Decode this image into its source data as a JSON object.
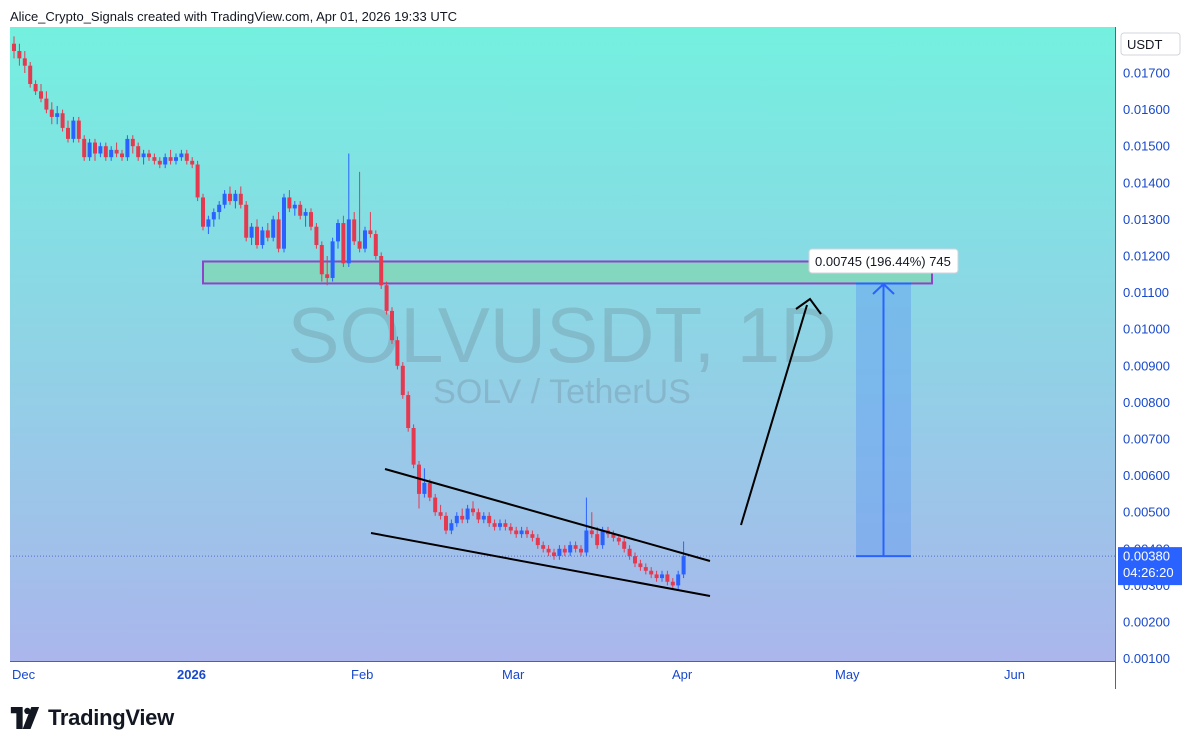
{
  "header": {
    "attribution": "Alice_Crypto_Signals created with TradingView.com, Apr 01, 2026 19:33 UTC"
  },
  "watermark": {
    "symbol": "SOLVUSDT, 1D",
    "pair": "SOLV / TetherUS"
  },
  "price_axis": {
    "currency": "USDT",
    "ticks": [
      "0.01700",
      "0.01600",
      "0.01500",
      "0.01400",
      "0.01300",
      "0.01200",
      "0.01100",
      "0.01000",
      "0.00900",
      "0.00800",
      "0.00700",
      "0.00600",
      "0.00500",
      "0.00400",
      "0.00300",
      "0.00200",
      "0.00100"
    ],
    "current_price": "0.00380",
    "countdown": "04:26:20"
  },
  "time_axis": {
    "labels": [
      {
        "text": "Dec",
        "bold": false
      },
      {
        "text": "2026",
        "bold": true
      },
      {
        "text": "Feb",
        "bold": false
      },
      {
        "text": "Mar",
        "bold": false
      },
      {
        "text": "Apr",
        "bold": false
      },
      {
        "text": "May",
        "bold": false
      },
      {
        "text": "Jun",
        "bold": false
      }
    ]
  },
  "measure_label": "0.00745 (196.44%) 745",
  "colors": {
    "up": "#2962ff",
    "down": "#e53950",
    "background_top": "#74f0df",
    "background_bottom": "#aab6ec",
    "resistance_fill": "#84d6b9",
    "resistance_border": "#8e44c9",
    "projection_fill": "#5f9cf2",
    "axis": "#2962ff"
  },
  "footer": {
    "brand": "TradingView"
  },
  "chart_data": {
    "type": "candlestick",
    "symbol": "SOLVUSDT",
    "interval": "1D",
    "ylim": [
      0.0009,
      0.0184
    ],
    "candles": [
      [
        0.0178,
        0.018,
        0.0174,
        0.0176
      ],
      [
        0.0176,
        0.0178,
        0.0172,
        0.0174
      ],
      [
        0.0174,
        0.0176,
        0.017,
        0.0172
      ],
      [
        0.0172,
        0.0173,
        0.0166,
        0.0167
      ],
      [
        0.0167,
        0.0168,
        0.0164,
        0.0165
      ],
      [
        0.0165,
        0.0167,
        0.0162,
        0.0163
      ],
      [
        0.0163,
        0.0165,
        0.0159,
        0.016
      ],
      [
        0.016,
        0.0162,
        0.0156,
        0.0158
      ],
      [
        0.0158,
        0.0161,
        0.0156,
        0.0159
      ],
      [
        0.0159,
        0.016,
        0.0154,
        0.0155
      ],
      [
        0.0155,
        0.0157,
        0.0151,
        0.0152
      ],
      [
        0.0152,
        0.0158,
        0.0151,
        0.0157
      ],
      [
        0.0157,
        0.0158,
        0.0151,
        0.0152
      ],
      [
        0.0152,
        0.0153,
        0.0146,
        0.0147
      ],
      [
        0.0147,
        0.0152,
        0.0146,
        0.0151
      ],
      [
        0.0151,
        0.0152,
        0.0146,
        0.0148
      ],
      [
        0.0148,
        0.0151,
        0.0147,
        0.015
      ],
      [
        0.015,
        0.0151,
        0.0146,
        0.0147
      ],
      [
        0.0147,
        0.015,
        0.0146,
        0.0149
      ],
      [
        0.0149,
        0.0151,
        0.0147,
        0.0148
      ],
      [
        0.0148,
        0.0149,
        0.0146,
        0.0147
      ],
      [
        0.0147,
        0.0153,
        0.0146,
        0.0152
      ],
      [
        0.0152,
        0.0153,
        0.0148,
        0.015
      ],
      [
        0.015,
        0.0151,
        0.0146,
        0.0147
      ],
      [
        0.0147,
        0.0149,
        0.0145,
        0.0148
      ],
      [
        0.0148,
        0.0149,
        0.0146,
        0.0147
      ],
      [
        0.0147,
        0.0148,
        0.0145,
        0.0146
      ],
      [
        0.0146,
        0.0147,
        0.0144,
        0.0145
      ],
      [
        0.0145,
        0.0148,
        0.0144,
        0.0147
      ],
      [
        0.0147,
        0.0149,
        0.0145,
        0.0146
      ],
      [
        0.0146,
        0.0148,
        0.0145,
        0.0147
      ],
      [
        0.0147,
        0.0149,
        0.0146,
        0.0148
      ],
      [
        0.0148,
        0.0149,
        0.0145,
        0.0146
      ],
      [
        0.0146,
        0.0147,
        0.0144,
        0.0145
      ],
      [
        0.0145,
        0.0146,
        0.0135,
        0.0136
      ],
      [
        0.0136,
        0.0137,
        0.0127,
        0.0128
      ],
      [
        0.0128,
        0.0131,
        0.0126,
        0.013
      ],
      [
        0.013,
        0.0133,
        0.0128,
        0.0132
      ],
      [
        0.0132,
        0.0135,
        0.013,
        0.0134
      ],
      [
        0.0134,
        0.0138,
        0.0133,
        0.0137
      ],
      [
        0.0137,
        0.0139,
        0.0134,
        0.0135
      ],
      [
        0.0135,
        0.0138,
        0.0133,
        0.0137
      ],
      [
        0.0137,
        0.0139,
        0.0133,
        0.0134
      ],
      [
        0.0134,
        0.0135,
        0.0124,
        0.0125
      ],
      [
        0.0125,
        0.0129,
        0.0123,
        0.0128
      ],
      [
        0.0128,
        0.013,
        0.0122,
        0.0123
      ],
      [
        0.0123,
        0.0128,
        0.0122,
        0.0127
      ],
      [
        0.0127,
        0.0129,
        0.0124,
        0.0125
      ],
      [
        0.0125,
        0.0131,
        0.0124,
        0.013
      ],
      [
        0.013,
        0.0132,
        0.0121,
        0.0122
      ],
      [
        0.0122,
        0.0137,
        0.0121,
        0.0136
      ],
      [
        0.0136,
        0.0138,
        0.0132,
        0.0133
      ],
      [
        0.0133,
        0.0135,
        0.0131,
        0.0134
      ],
      [
        0.0134,
        0.0135,
        0.013,
        0.0131
      ],
      [
        0.0131,
        0.0133,
        0.0128,
        0.0132
      ],
      [
        0.0132,
        0.0133,
        0.0127,
        0.0128
      ],
      [
        0.0128,
        0.0129,
        0.0122,
        0.0123
      ],
      [
        0.0123,
        0.0124,
        0.0113,
        0.0115
      ],
      [
        0.0115,
        0.012,
        0.0112,
        0.0114
      ],
      [
        0.0114,
        0.0125,
        0.0113,
        0.0124
      ],
      [
        0.0124,
        0.013,
        0.0122,
        0.0129
      ],
      [
        0.0129,
        0.0131,
        0.0117,
        0.0118
      ],
      [
        0.0118,
        0.0148,
        0.0117,
        0.013
      ],
      [
        0.013,
        0.0132,
        0.0123,
        0.0124
      ],
      [
        0.0124,
        0.0143,
        0.0121,
        0.0122
      ],
      [
        0.0122,
        0.0128,
        0.0121,
        0.0127
      ],
      [
        0.0127,
        0.0132,
        0.0125,
        0.0126
      ],
      [
        0.0126,
        0.0127,
        0.0119,
        0.012
      ],
      [
        0.012,
        0.0121,
        0.0111,
        0.0112
      ],
      [
        0.0112,
        0.0113,
        0.0104,
        0.0105
      ],
      [
        0.0105,
        0.0106,
        0.0096,
        0.0097
      ],
      [
        0.0097,
        0.0098,
        0.0089,
        0.009
      ],
      [
        0.009,
        0.0091,
        0.0081,
        0.0082
      ],
      [
        0.0082,
        0.0083,
        0.0072,
        0.0073
      ],
      [
        0.0073,
        0.0074,
        0.0062,
        0.0063
      ],
      [
        0.0063,
        0.0064,
        0.0051,
        0.0055
      ],
      [
        0.0055,
        0.0062,
        0.0054,
        0.0058
      ],
      [
        0.0058,
        0.0059,
        0.0053,
        0.0054
      ],
      [
        0.0054,
        0.0055,
        0.0049,
        0.005
      ],
      [
        0.005,
        0.0052,
        0.0048,
        0.0049
      ],
      [
        0.0049,
        0.005,
        0.0044,
        0.0045
      ],
      [
        0.0045,
        0.0048,
        0.0044,
        0.0047
      ],
      [
        0.0047,
        0.005,
        0.0046,
        0.0049
      ],
      [
        0.0049,
        0.0051,
        0.0047,
        0.0048
      ],
      [
        0.0048,
        0.0052,
        0.0047,
        0.0051
      ],
      [
        0.0051,
        0.0053,
        0.0049,
        0.005
      ],
      [
        0.005,
        0.0051,
        0.0047,
        0.0048
      ],
      [
        0.0048,
        0.005,
        0.0047,
        0.0049
      ],
      [
        0.0049,
        0.005,
        0.0046,
        0.0047
      ],
      [
        0.0047,
        0.0048,
        0.0045,
        0.0046
      ],
      [
        0.0046,
        0.0048,
        0.0045,
        0.0047
      ],
      [
        0.0047,
        0.0048,
        0.0045,
        0.0046
      ],
      [
        0.0046,
        0.0047,
        0.0044,
        0.0045
      ],
      [
        0.0045,
        0.0046,
        0.0043,
        0.0044
      ],
      [
        0.0044,
        0.0046,
        0.0043,
        0.0045
      ],
      [
        0.0045,
        0.0046,
        0.0043,
        0.0044
      ],
      [
        0.0044,
        0.0045,
        0.0042,
        0.0043
      ],
      [
        0.0043,
        0.0044,
        0.004,
        0.0041
      ],
      [
        0.0041,
        0.0042,
        0.0039,
        0.004
      ],
      [
        0.004,
        0.0041,
        0.0038,
        0.0039
      ],
      [
        0.0039,
        0.004,
        0.0037,
        0.0038
      ],
      [
        0.0038,
        0.0041,
        0.0037,
        0.004
      ],
      [
        0.004,
        0.0041,
        0.0038,
        0.0039
      ],
      [
        0.0039,
        0.0042,
        0.0038,
        0.0041
      ],
      [
        0.0041,
        0.0042,
        0.0039,
        0.004
      ],
      [
        0.004,
        0.0041,
        0.0038,
        0.0039
      ],
      [
        0.0039,
        0.0054,
        0.0038,
        0.0045
      ],
      [
        0.0045,
        0.005,
        0.0043,
        0.0044
      ],
      [
        0.0044,
        0.0046,
        0.004,
        0.0041
      ],
      [
        0.0041,
        0.0046,
        0.004,
        0.0045
      ],
      [
        0.0045,
        0.0046,
        0.0043,
        0.0044
      ],
      [
        0.0044,
        0.0045,
        0.0042,
        0.0043
      ],
      [
        0.0043,
        0.0044,
        0.0041,
        0.0042
      ],
      [
        0.0042,
        0.0043,
        0.0039,
        0.004
      ],
      [
        0.004,
        0.0041,
        0.0037,
        0.0038
      ],
      [
        0.0038,
        0.0039,
        0.0035,
        0.0036
      ],
      [
        0.0036,
        0.0037,
        0.0034,
        0.0035
      ],
      [
        0.0035,
        0.0036,
        0.0033,
        0.0034
      ],
      [
        0.0034,
        0.0035,
        0.0032,
        0.0033
      ],
      [
        0.0033,
        0.0034,
        0.0031,
        0.0032
      ],
      [
        0.0032,
        0.0034,
        0.0031,
        0.0033
      ],
      [
        0.0033,
        0.0034,
        0.003,
        0.0031
      ],
      [
        0.0031,
        0.0032,
        0.0029,
        0.003
      ],
      [
        0.003,
        0.0034,
        0.0029,
        0.0033
      ],
      [
        0.0033,
        0.0042,
        0.0032,
        0.0038
      ]
    ],
    "resistance_zone": [
      0.01125,
      0.01185
    ],
    "measure_range": [
      0.0038,
      0.01125
    ]
  }
}
